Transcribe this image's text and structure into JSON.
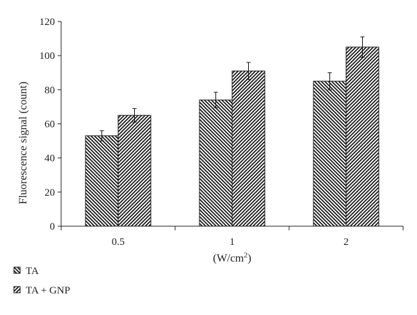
{
  "chart_data": {
    "type": "bar",
    "categories": [
      "0.5",
      "1",
      "2"
    ],
    "series": [
      {
        "name": "TA",
        "values": [
          53,
          74,
          85
        ],
        "errors": [
          3,
          4.5,
          5
        ]
      },
      {
        "name": "TA + GNP",
        "values": [
          65,
          91,
          105
        ],
        "errors": [
          4,
          5,
          6
        ]
      }
    ],
    "xlabel": "(W/cm²)",
    "ylabel": "Fluorescence signal (count)",
    "ylim": [
      0,
      120
    ],
    "yticks": [
      0,
      20,
      40,
      60,
      80,
      100,
      120
    ],
    "grid": false,
    "legend_position": "bottom-left",
    "error_bars": true
  }
}
